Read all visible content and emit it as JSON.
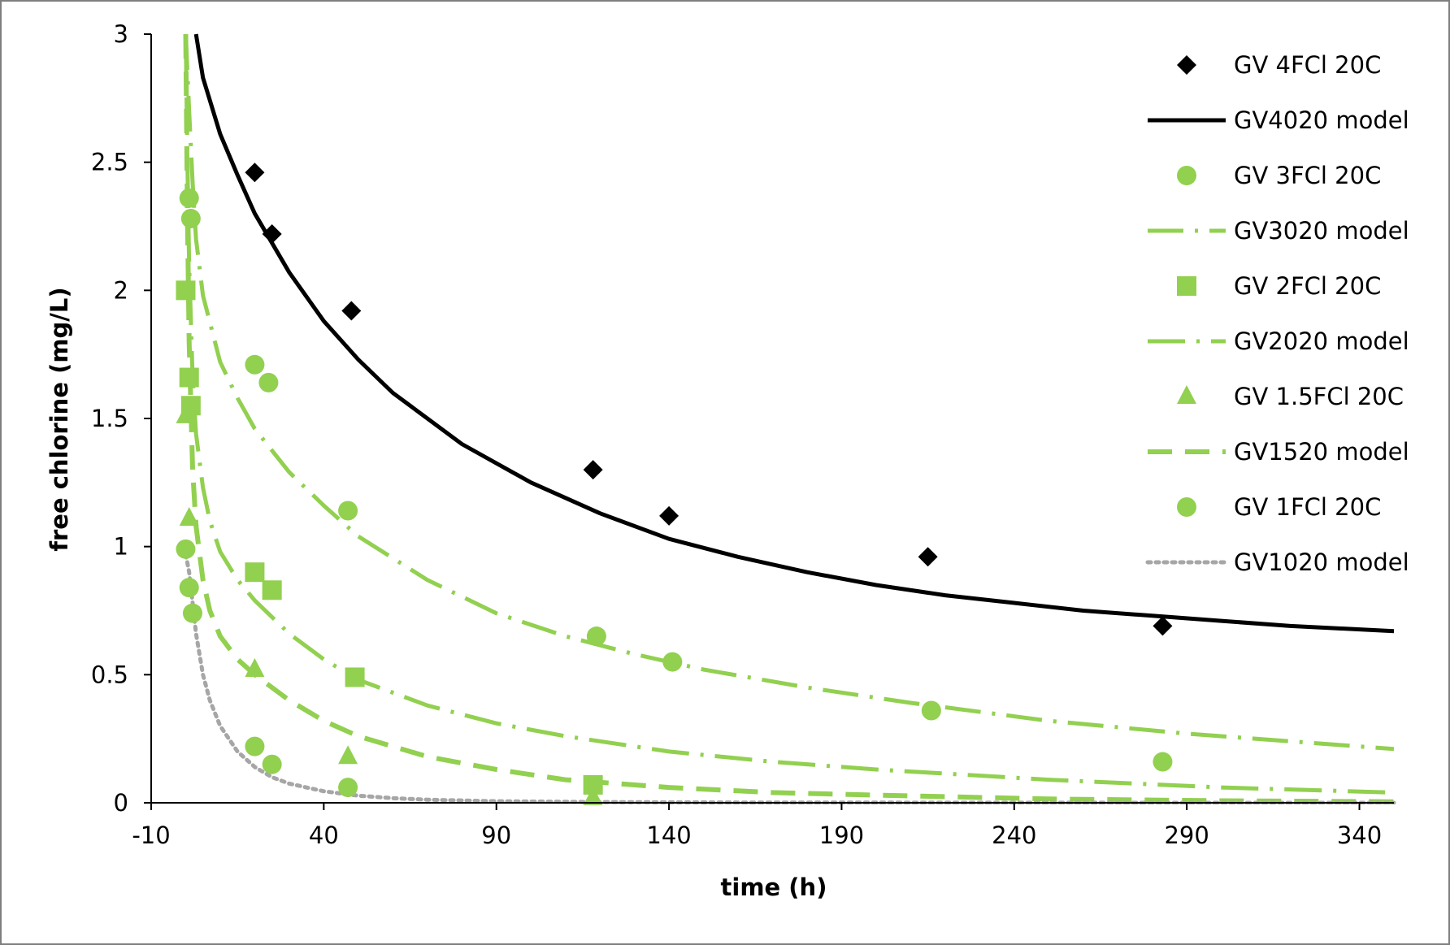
{
  "chart_data": {
    "type": "scatter",
    "xlabel": "time (h)",
    "ylabel": "free chlorine (mg/L)",
    "xlim": [
      -10,
      350
    ],
    "ylim": [
      0,
      3
    ],
    "x_ticks": [
      -10,
      40,
      90,
      140,
      190,
      240,
      290,
      340
    ],
    "y_ticks": [
      0,
      0.5,
      1,
      1.5,
      2,
      2.5,
      3
    ],
    "y_tick_labels": [
      "0",
      "0.5",
      "1",
      "1.5",
      "2",
      "2.5",
      "3"
    ],
    "grid": false,
    "legend_position": "right",
    "colors": {
      "black": "#000000",
      "green": "#92d050",
      "gray": "#a6a6a6",
      "frame": "#7f7f7f"
    },
    "series": [
      {
        "name": "GV 4FCl 20C",
        "kind": "points",
        "marker": "diamond",
        "color": "#000000",
        "x": [
          20,
          25,
          48,
          118,
          140,
          215,
          283
        ],
        "y": [
          2.46,
          2.22,
          1.92,
          1.3,
          1.12,
          0.96,
          0.69
        ]
      },
      {
        "name": "GV4020 model",
        "kind": "line",
        "dash": "solid",
        "color": "#000000",
        "x": [
          3,
          5,
          10,
          15,
          20,
          30,
          40,
          50,
          60,
          80,
          100,
          120,
          140,
          160,
          180,
          200,
          220,
          240,
          260,
          280,
          300,
          320,
          350
        ],
        "y": [
          3.0,
          2.83,
          2.61,
          2.45,
          2.3,
          2.07,
          1.88,
          1.73,
          1.6,
          1.4,
          1.25,
          1.13,
          1.03,
          0.96,
          0.9,
          0.85,
          0.81,
          0.78,
          0.75,
          0.73,
          0.71,
          0.69,
          0.67
        ]
      },
      {
        "name": "GV 3FCl 20C",
        "kind": "points",
        "marker": "circle",
        "color": "#92d050",
        "x": [
          1,
          1.5,
          20,
          24,
          47,
          119,
          141,
          216,
          283
        ],
        "y": [
          2.36,
          2.28,
          1.71,
          1.64,
          1.14,
          0.65,
          0.55,
          0.36,
          0.16
        ]
      },
      {
        "name": "GV3020 model",
        "kind": "line",
        "dash": "dashdot",
        "color": "#92d050",
        "x": [
          0,
          1,
          2,
          3,
          5,
          10,
          15,
          20,
          30,
          40,
          50,
          70,
          90,
          110,
          130,
          150,
          180,
          210,
          250,
          290,
          320,
          350
        ],
        "y": [
          3.0,
          2.7,
          2.42,
          2.2,
          1.98,
          1.72,
          1.58,
          1.46,
          1.29,
          1.16,
          1.04,
          0.87,
          0.74,
          0.65,
          0.58,
          0.52,
          0.45,
          0.39,
          0.32,
          0.27,
          0.24,
          0.21
        ]
      },
      {
        "name": "GV 2FCl 20C",
        "kind": "points",
        "marker": "square",
        "color": "#92d050",
        "x": [
          0,
          1,
          1.5,
          20,
          25,
          49,
          118
        ],
        "y": [
          2.0,
          1.66,
          1.55,
          0.9,
          0.83,
          0.49,
          0.07
        ]
      },
      {
        "name": "GV2020 model",
        "kind": "line",
        "dash": "longdashdot",
        "color": "#92d050",
        "x": [
          0,
          0.5,
          1,
          2,
          3,
          5,
          7,
          10,
          15,
          20,
          30,
          40,
          50,
          70,
          90,
          110,
          140,
          170,
          200,
          250,
          300,
          350
        ],
        "y": [
          3.0,
          2.5,
          2.1,
          1.66,
          1.44,
          1.23,
          1.1,
          0.98,
          0.87,
          0.79,
          0.66,
          0.56,
          0.48,
          0.38,
          0.31,
          0.26,
          0.2,
          0.16,
          0.13,
          0.09,
          0.06,
          0.04
        ]
      },
      {
        "name": "GV 1.5FCl 20C",
        "kind": "points",
        "marker": "triangle",
        "color": "#92d050",
        "x": [
          0,
          1,
          20,
          47,
          118
        ],
        "y": [
          1.51,
          1.11,
          0.52,
          0.18,
          0.02
        ]
      },
      {
        "name": "GV1520 model",
        "kind": "line",
        "dash": "dashed",
        "color": "#92d050",
        "x": [
          0,
          0.5,
          1,
          2,
          3,
          5,
          7,
          10,
          15,
          20,
          30,
          40,
          50,
          70,
          90,
          110,
          140,
          170,
          200,
          250,
          300,
          350
        ],
        "y": [
          3.0,
          2.3,
          1.8,
          1.3,
          1.08,
          0.87,
          0.75,
          0.65,
          0.56,
          0.5,
          0.4,
          0.32,
          0.26,
          0.18,
          0.13,
          0.09,
          0.06,
          0.04,
          0.03,
          0.015,
          0.008,
          0.004
        ]
      },
      {
        "name": "GV 1FCl 20C",
        "kind": "points",
        "marker": "circle",
        "color": "#92d050",
        "x": [
          0,
          1,
          2,
          20,
          25,
          47
        ],
        "y": [
          0.99,
          0.84,
          0.74,
          0.22,
          0.15,
          0.06
        ]
      },
      {
        "name": "GV1020 model",
        "kind": "line",
        "dash": "dotted",
        "color": "#a6a6a6",
        "x": [
          0,
          1,
          2,
          3,
          5,
          7,
          10,
          15,
          20,
          25,
          30,
          40,
          50,
          60,
          70,
          90,
          120,
          160,
          200,
          250,
          300,
          350
        ],
        "y": [
          0.97,
          0.9,
          0.78,
          0.66,
          0.5,
          0.4,
          0.3,
          0.2,
          0.14,
          0.1,
          0.075,
          0.045,
          0.028,
          0.018,
          0.012,
          0.006,
          0.003,
          0.001,
          0.0005,
          0.0002,
          0.0001,
          0.0
        ]
      }
    ]
  }
}
